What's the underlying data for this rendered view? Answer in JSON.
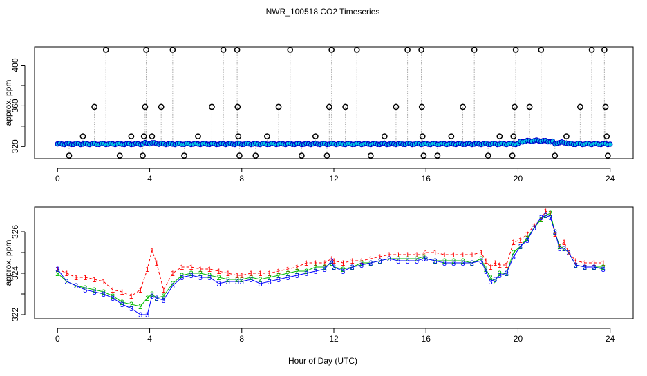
{
  "chart_data": [
    {
      "type": "scatter",
      "title": "NWR_100518  CO2 Timeseries",
      "xlabel": "",
      "ylabel": "approx. ppm",
      "xlim": [
        -1,
        25
      ],
      "ylim": [
        308,
        418
      ],
      "x_ticks": [
        "0",
        "4",
        "8",
        "12",
        "16",
        "20",
        "24"
      ],
      "y_ticks": [
        "320",
        "360",
        "400"
      ],
      "y_tick_values": [
        320,
        360,
        400
      ],
      "colors": {
        "flagged": "#000000",
        "drop_line": "#999999",
        "main_points": "#0000cc",
        "main_fill": "#00c8e0",
        "red_line": "#ff0000"
      },
      "flagged_points": [
        {
          "x": 0.5,
          "y": 311
        },
        {
          "x": 1.1,
          "y": 330
        },
        {
          "x": 1.6,
          "y": 359
        },
        {
          "x": 2.1,
          "y": 415
        },
        {
          "x": 2.7,
          "y": 311
        },
        {
          "x": 3.2,
          "y": 330
        },
        {
          "x": 3.7,
          "y": 311
        },
        {
          "x": 3.75,
          "y": 330
        },
        {
          "x": 3.8,
          "y": 359
        },
        {
          "x": 3.85,
          "y": 415
        },
        {
          "x": 4.1,
          "y": 330
        },
        {
          "x": 4.5,
          "y": 359
        },
        {
          "x": 5.0,
          "y": 415
        },
        {
          "x": 5.5,
          "y": 311
        },
        {
          "x": 6.1,
          "y": 330
        },
        {
          "x": 6.7,
          "y": 359
        },
        {
          "x": 7.2,
          "y": 415
        },
        {
          "x": 7.8,
          "y": 415
        },
        {
          "x": 7.82,
          "y": 359
        },
        {
          "x": 7.85,
          "y": 330
        },
        {
          "x": 7.9,
          "y": 311
        },
        {
          "x": 8.6,
          "y": 311
        },
        {
          "x": 9.1,
          "y": 330
        },
        {
          "x": 9.6,
          "y": 359
        },
        {
          "x": 10.1,
          "y": 415
        },
        {
          "x": 10.6,
          "y": 311
        },
        {
          "x": 11.2,
          "y": 330
        },
        {
          "x": 11.7,
          "y": 311
        },
        {
          "x": 11.8,
          "y": 359
        },
        {
          "x": 11.9,
          "y": 415
        },
        {
          "x": 12.5,
          "y": 359
        },
        {
          "x": 13.0,
          "y": 415
        },
        {
          "x": 13.6,
          "y": 311
        },
        {
          "x": 14.2,
          "y": 330
        },
        {
          "x": 14.7,
          "y": 359
        },
        {
          "x": 15.2,
          "y": 415
        },
        {
          "x": 15.8,
          "y": 415
        },
        {
          "x": 15.82,
          "y": 359
        },
        {
          "x": 15.85,
          "y": 330
        },
        {
          "x": 15.9,
          "y": 311
        },
        {
          "x": 16.5,
          "y": 311
        },
        {
          "x": 17.1,
          "y": 330
        },
        {
          "x": 17.6,
          "y": 359
        },
        {
          "x": 18.1,
          "y": 415
        },
        {
          "x": 18.7,
          "y": 311
        },
        {
          "x": 19.2,
          "y": 330
        },
        {
          "x": 19.75,
          "y": 311
        },
        {
          "x": 19.8,
          "y": 330
        },
        {
          "x": 19.85,
          "y": 359
        },
        {
          "x": 19.9,
          "y": 415
        },
        {
          "x": 20.5,
          "y": 359
        },
        {
          "x": 21.0,
          "y": 415
        },
        {
          "x": 21.6,
          "y": 311
        },
        {
          "x": 22.1,
          "y": 330
        },
        {
          "x": 22.7,
          "y": 359
        },
        {
          "x": 23.2,
          "y": 415
        },
        {
          "x": 23.75,
          "y": 415
        },
        {
          "x": 23.8,
          "y": 359
        },
        {
          "x": 23.85,
          "y": 330
        },
        {
          "x": 23.9,
          "y": 311
        }
      ]
    },
    {
      "type": "line",
      "title": "",
      "xlabel": "Hour of Day (UTC)",
      "ylabel": "approx. ppm",
      "xlim": [
        -1,
        25
      ],
      "ylim": [
        321.8,
        327.2
      ],
      "x_ticks": [
        "0",
        "4",
        "8",
        "12",
        "16",
        "20",
        "24"
      ],
      "y_ticks": [
        "322",
        "324",
        "326"
      ],
      "y_tick_values": [
        322,
        324,
        326
      ],
      "series": [
        {
          "name": "1",
          "color": "#ff0000",
          "x": [
            0,
            0.4,
            0.8,
            1.2,
            1.6,
            2.0,
            2.4,
            2.8,
            3.2,
            3.6,
            3.9,
            4.1,
            4.3,
            4.6,
            5.0,
            5.4,
            5.8,
            6.2,
            6.6,
            7.0,
            7.4,
            7.8,
            8.0,
            8.4,
            8.8,
            9.2,
            9.6,
            10.0,
            10.4,
            10.8,
            11.2,
            11.6,
            11.9,
            12.0,
            12.4,
            12.8,
            13.2,
            13.6,
            14.0,
            14.4,
            14.8,
            15.2,
            15.6,
            15.9,
            16.0,
            16.4,
            16.8,
            17.2,
            17.6,
            18.0,
            18.4,
            18.6,
            18.8,
            19.0,
            19.2,
            19.5,
            19.8,
            20.1,
            20.4,
            20.7,
            21.0,
            21.2,
            21.4,
            21.6,
            21.8,
            22.0,
            22.2,
            22.5,
            22.9,
            23.3,
            23.7
          ],
          "values": [
            324.2,
            324.0,
            323.8,
            323.8,
            323.7,
            323.6,
            323.2,
            323.1,
            322.9,
            323.2,
            324.2,
            325.1,
            324.5,
            323.2,
            324.0,
            324.3,
            324.3,
            324.2,
            324.2,
            324.1,
            324.0,
            323.9,
            323.9,
            324.0,
            324.0,
            324.0,
            324.1,
            324.2,
            324.3,
            324.5,
            324.5,
            324.5,
            324.7,
            324.6,
            324.5,
            324.6,
            324.6,
            324.7,
            324.8,
            324.9,
            324.9,
            324.9,
            324.9,
            324.9,
            325.0,
            325.0,
            324.9,
            324.9,
            324.9,
            324.9,
            325.0,
            324.6,
            324.3,
            324.5,
            324.4,
            324.4,
            325.5,
            325.6,
            325.9,
            326.3,
            326.6,
            327.0,
            326.9,
            325.9,
            325.3,
            325.5,
            325.0,
            324.6,
            324.5,
            324.5,
            324.5
          ]
        },
        {
          "name": "2",
          "color": "#00bb00",
          "x": [
            0,
            0.4,
            0.8,
            1.2,
            1.6,
            2.0,
            2.4,
            2.8,
            3.2,
            3.6,
            3.9,
            4.1,
            4.3,
            4.6,
            5.0,
            5.4,
            5.8,
            6.2,
            6.6,
            7.0,
            7.4,
            7.8,
            8.0,
            8.4,
            8.8,
            9.2,
            9.6,
            10.0,
            10.4,
            10.8,
            11.2,
            11.6,
            11.9,
            12.0,
            12.4,
            12.8,
            13.2,
            13.6,
            14.0,
            14.4,
            14.8,
            15.2,
            15.6,
            15.9,
            16.0,
            16.4,
            16.8,
            17.2,
            17.6,
            18.0,
            18.4,
            18.6,
            18.8,
            19.0,
            19.2,
            19.5,
            19.8,
            20.1,
            20.4,
            20.7,
            21.0,
            21.2,
            21.4,
            21.6,
            21.8,
            22.0,
            22.2,
            22.5,
            22.9,
            23.3,
            23.7
          ],
          "values": [
            324.0,
            323.6,
            323.4,
            323.3,
            323.2,
            323.1,
            322.9,
            322.6,
            322.5,
            322.4,
            322.8,
            323.0,
            322.8,
            322.9,
            323.5,
            323.9,
            324.0,
            324.0,
            323.9,
            323.8,
            323.7,
            323.7,
            323.7,
            323.8,
            323.7,
            323.8,
            323.9,
            324.0,
            324.1,
            324.1,
            324.3,
            324.3,
            324.5,
            324.3,
            324.2,
            324.3,
            324.5,
            324.5,
            324.6,
            324.7,
            324.7,
            324.7,
            324.7,
            324.8,
            324.7,
            324.6,
            324.6,
            324.6,
            324.6,
            324.5,
            324.7,
            324.2,
            323.8,
            323.6,
            324.0,
            324.0,
            325.0,
            325.3,
            325.7,
            326.2,
            326.6,
            326.8,
            326.9,
            326.0,
            325.3,
            325.2,
            325.0,
            324.4,
            324.3,
            324.3,
            324.3
          ]
        },
        {
          "name": "3",
          "color": "#0000ff",
          "x": [
            0,
            0.4,
            0.8,
            1.2,
            1.6,
            2.0,
            2.4,
            2.8,
            3.2,
            3.6,
            3.9,
            4.1,
            4.3,
            4.6,
            5.0,
            5.4,
            5.8,
            6.2,
            6.6,
            7.0,
            7.4,
            7.8,
            8.0,
            8.4,
            8.8,
            9.2,
            9.6,
            10.0,
            10.4,
            10.8,
            11.2,
            11.6,
            11.9,
            12.0,
            12.4,
            12.8,
            13.2,
            13.6,
            14.0,
            14.4,
            14.8,
            15.2,
            15.6,
            15.9,
            16.0,
            16.4,
            16.8,
            17.2,
            17.6,
            18.0,
            18.4,
            18.6,
            18.8,
            19.0,
            19.2,
            19.5,
            19.8,
            20.1,
            20.4,
            20.7,
            21.0,
            21.2,
            21.4,
            21.6,
            21.8,
            22.0,
            22.2,
            22.5,
            22.9,
            23.3,
            23.7
          ],
          "values": [
            324.2,
            323.6,
            323.4,
            323.2,
            323.1,
            323.0,
            322.8,
            322.5,
            322.3,
            322.0,
            322.0,
            322.9,
            322.8,
            322.7,
            323.4,
            323.8,
            323.9,
            323.8,
            323.8,
            323.5,
            323.6,
            323.6,
            323.6,
            323.7,
            323.5,
            323.6,
            323.7,
            323.8,
            323.9,
            324.0,
            324.1,
            324.2,
            324.6,
            324.3,
            324.1,
            324.3,
            324.4,
            324.5,
            324.6,
            324.7,
            324.6,
            324.6,
            324.6,
            324.7,
            324.7,
            324.6,
            324.5,
            324.5,
            324.5,
            324.5,
            324.6,
            324.1,
            323.6,
            323.7,
            323.9,
            324.0,
            324.8,
            325.3,
            325.6,
            326.2,
            326.7,
            326.8,
            326.7,
            326.0,
            325.2,
            325.2,
            325.0,
            324.4,
            324.3,
            324.3,
            324.2
          ]
        }
      ]
    }
  ]
}
